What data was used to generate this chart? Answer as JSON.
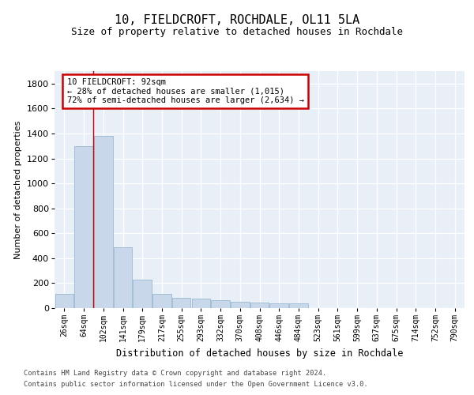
{
  "title": "10, FIELDCROFT, ROCHDALE, OL11 5LA",
  "subtitle": "Size of property relative to detached houses in Rochdale",
  "xlabel": "Distribution of detached houses by size in Rochdale",
  "ylabel": "Number of detached properties",
  "bar_color": "#c8d8ea",
  "bar_edge_color": "#9ab8d0",
  "background_color": "#e8eff7",
  "grid_color": "#ffffff",
  "categories": [
    "26sqm",
    "64sqm",
    "102sqm",
    "141sqm",
    "179sqm",
    "217sqm",
    "255sqm",
    "293sqm",
    "332sqm",
    "370sqm",
    "408sqm",
    "446sqm",
    "484sqm",
    "523sqm",
    "561sqm",
    "599sqm",
    "637sqm",
    "675sqm",
    "714sqm",
    "752sqm",
    "790sqm"
  ],
  "values": [
    115,
    1300,
    1380,
    490,
    230,
    115,
    85,
    75,
    62,
    52,
    42,
    36,
    36,
    0,
    0,
    0,
    0,
    0,
    0,
    0,
    0
  ],
  "property_label": "10 FIELDCROFT: 92sqm",
  "annotation_line1": "← 28% of detached houses are smaller (1,015)",
  "annotation_line2": "72% of semi-detached houses are larger (2,634) →",
  "vline_position": 1.5,
  "ylim": [
    0,
    1900
  ],
  "yticks": [
    0,
    200,
    400,
    600,
    800,
    1000,
    1200,
    1400,
    1600,
    1800
  ],
  "footer_line1": "Contains HM Land Registry data © Crown copyright and database right 2024.",
  "footer_line2": "Contains public sector information licensed under the Open Government Licence v3.0.",
  "annotation_box_facecolor": "#ffffff",
  "annotation_box_edgecolor": "#cc0000",
  "vline_color": "#cc0000",
  "title_fontsize": 11,
  "subtitle_fontsize": 9
}
